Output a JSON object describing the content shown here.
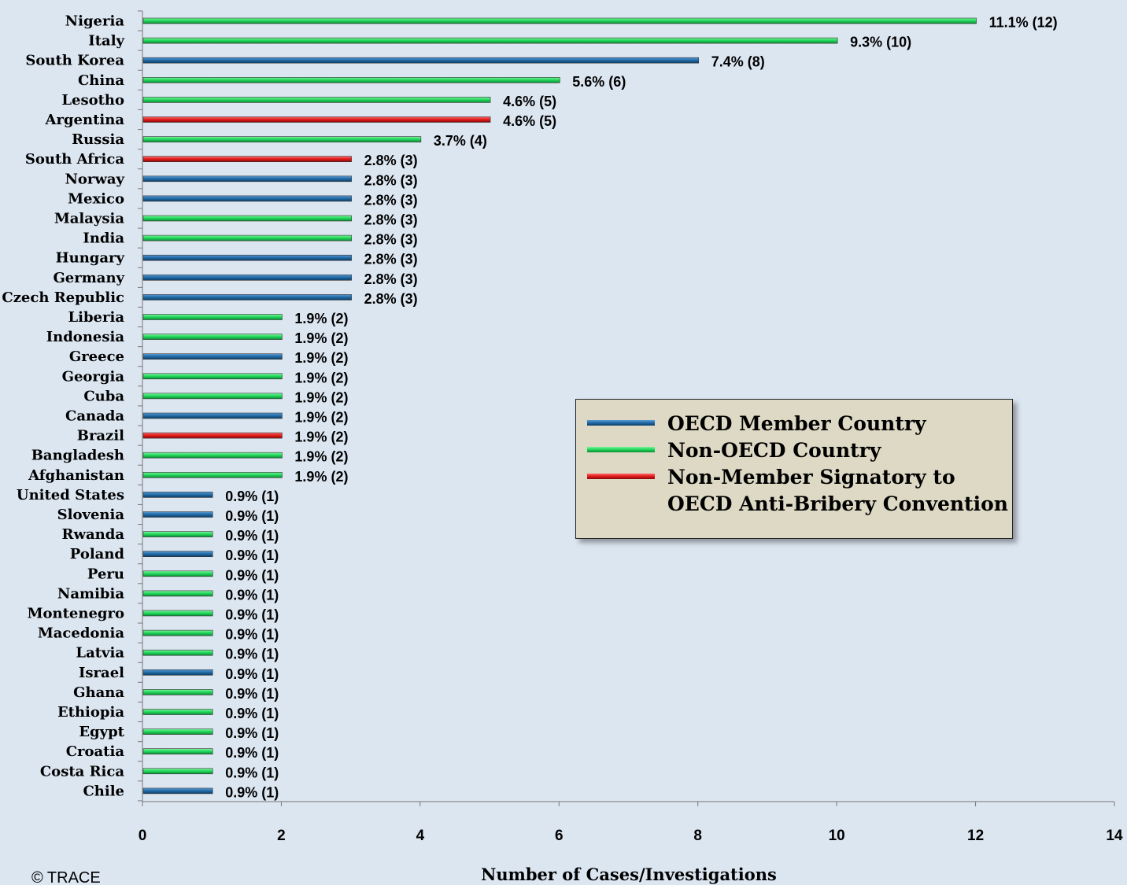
{
  "chart_data": {
    "type": "bar",
    "orientation": "horizontal",
    "xlabel": "Number of Cases/Investigations",
    "xlim": [
      0,
      14
    ],
    "xticks": [
      0,
      2,
      4,
      6,
      8,
      10,
      12,
      14
    ],
    "grid": false,
    "legend_position": "center-right",
    "colors": {
      "oecd": "#1f6aa5",
      "non_oecd": "#1fd65a",
      "signatory": "#e01a1a"
    },
    "series": [
      {
        "name": "OECD Member Country",
        "key": "oecd"
      },
      {
        "name": "Non-OECD Country",
        "key": "non_oecd"
      },
      {
        "name": "Non-Member Signatory to\nOECD Anti-Bribery Convention",
        "key": "signatory"
      }
    ],
    "bars": [
      {
        "country": "Nigeria",
        "value": 12,
        "label": "11.1% (12)",
        "group": "non_oecd"
      },
      {
        "country": "Italy",
        "value": 10,
        "label": "9.3% (10)",
        "group": "non_oecd"
      },
      {
        "country": "South Korea",
        "value": 8,
        "label": "7.4% (8)",
        "group": "oecd"
      },
      {
        "country": "China",
        "value": 6,
        "label": "5.6% (6)",
        "group": "non_oecd"
      },
      {
        "country": "Lesotho",
        "value": 5,
        "label": "4.6% (5)",
        "group": "non_oecd"
      },
      {
        "country": "Argentina",
        "value": 5,
        "label": "4.6% (5)",
        "group": "signatory"
      },
      {
        "country": "Russia",
        "value": 4,
        "label": "3.7% (4)",
        "group": "non_oecd"
      },
      {
        "country": "South Africa",
        "value": 3,
        "label": "2.8% (3)",
        "group": "signatory"
      },
      {
        "country": "Norway",
        "value": 3,
        "label": "2.8% (3)",
        "group": "oecd"
      },
      {
        "country": "Mexico",
        "value": 3,
        "label": "2.8% (3)",
        "group": "oecd"
      },
      {
        "country": "Malaysia",
        "value": 3,
        "label": "2.8% (3)",
        "group": "non_oecd"
      },
      {
        "country": "India",
        "value": 3,
        "label": "2.8% (3)",
        "group": "non_oecd"
      },
      {
        "country": "Hungary",
        "value": 3,
        "label": "2.8% (3)",
        "group": "oecd"
      },
      {
        "country": "Germany",
        "value": 3,
        "label": "2.8% (3)",
        "group": "oecd"
      },
      {
        "country": "Czech Republic",
        "value": 3,
        "label": "2.8% (3)",
        "group": "oecd"
      },
      {
        "country": "Liberia",
        "value": 2,
        "label": "1.9% (2)",
        "group": "non_oecd"
      },
      {
        "country": "Indonesia",
        "value": 2,
        "label": "1.9% (2)",
        "group": "non_oecd"
      },
      {
        "country": "Greece",
        "value": 2,
        "label": "1.9% (2)",
        "group": "oecd"
      },
      {
        "country": "Georgia",
        "value": 2,
        "label": "1.9% (2)",
        "group": "non_oecd"
      },
      {
        "country": "Cuba",
        "value": 2,
        "label": "1.9% (2)",
        "group": "non_oecd"
      },
      {
        "country": "Canada",
        "value": 2,
        "label": "1.9% (2)",
        "group": "oecd"
      },
      {
        "country": "Brazil",
        "value": 2,
        "label": "1.9% (2)",
        "group": "signatory"
      },
      {
        "country": "Bangladesh",
        "value": 2,
        "label": "1.9% (2)",
        "group": "non_oecd"
      },
      {
        "country": "Afghanistan",
        "value": 2,
        "label": "1.9% (2)",
        "group": "non_oecd"
      },
      {
        "country": "United States",
        "value": 1,
        "label": "0.9% (1)",
        "group": "oecd"
      },
      {
        "country": "Slovenia",
        "value": 1,
        "label": "0.9% (1)",
        "group": "oecd"
      },
      {
        "country": "Rwanda",
        "value": 1,
        "label": "0.9% (1)",
        "group": "non_oecd"
      },
      {
        "country": "Poland",
        "value": 1,
        "label": "0.9% (1)",
        "group": "oecd"
      },
      {
        "country": "Peru",
        "value": 1,
        "label": "0.9% (1)",
        "group": "non_oecd"
      },
      {
        "country": "Namibia",
        "value": 1,
        "label": "0.9% (1)",
        "group": "non_oecd"
      },
      {
        "country": "Montenegro",
        "value": 1,
        "label": "0.9% (1)",
        "group": "non_oecd"
      },
      {
        "country": "Macedonia",
        "value": 1,
        "label": "0.9% (1)",
        "group": "non_oecd"
      },
      {
        "country": "Latvia",
        "value": 1,
        "label": "0.9% (1)",
        "group": "non_oecd"
      },
      {
        "country": "Israel",
        "value": 1,
        "label": "0.9% (1)",
        "group": "oecd"
      },
      {
        "country": "Ghana",
        "value": 1,
        "label": "0.9% (1)",
        "group": "non_oecd"
      },
      {
        "country": "Ethiopia",
        "value": 1,
        "label": "0.9% (1)",
        "group": "non_oecd"
      },
      {
        "country": "Egypt",
        "value": 1,
        "label": "0.9% (1)",
        "group": "non_oecd"
      },
      {
        "country": "Croatia",
        "value": 1,
        "label": "0.9% (1)",
        "group": "non_oecd"
      },
      {
        "country": "Costa Rica",
        "value": 1,
        "label": "0.9% (1)",
        "group": "non_oecd"
      },
      {
        "country": "Chile",
        "value": 1,
        "label": "0.9% (1)",
        "group": "oecd"
      }
    ]
  },
  "footer": {
    "copyright": "© TRACE"
  }
}
